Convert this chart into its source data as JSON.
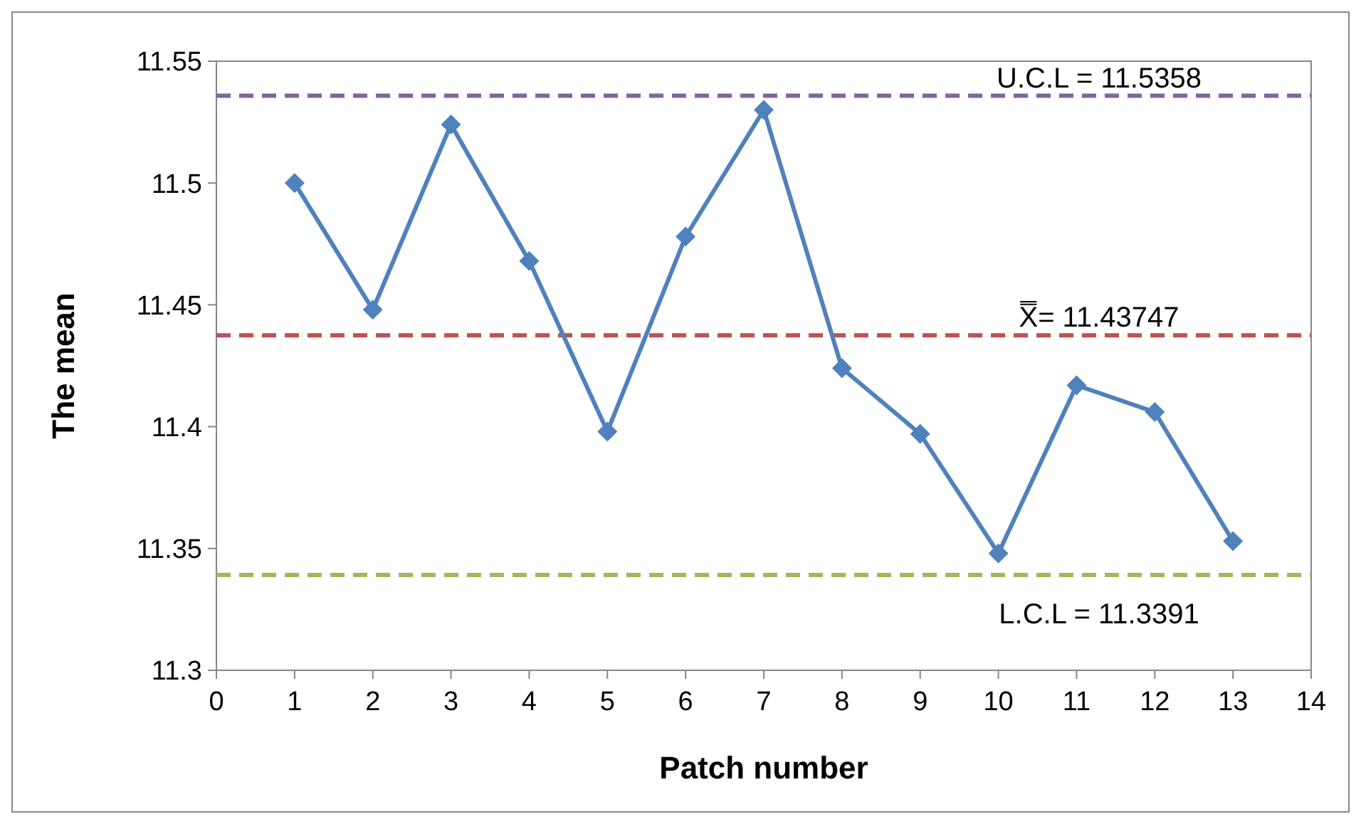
{
  "chart_data": {
    "type": "line",
    "xlabel": "Patch number",
    "ylabel": "The mean",
    "x": [
      1,
      2,
      3,
      4,
      5,
      6,
      7,
      8,
      9,
      10,
      11,
      12,
      13
    ],
    "series": [
      {
        "color": "#4f81bd",
        "values": [
          11.5,
          11.448,
          11.524,
          11.468,
          11.398,
          11.478,
          11.53,
          11.424,
          11.397,
          11.348,
          11.417,
          11.406,
          11.353
        ]
      }
    ],
    "xlim": [
      0,
      14
    ],
    "xticks": [
      0,
      1,
      2,
      3,
      4,
      5,
      6,
      7,
      8,
      9,
      10,
      11,
      12,
      13,
      14
    ],
    "ylim": [
      11.3,
      11.55
    ],
    "yticks": [
      11.3,
      11.35,
      11.4,
      11.45,
      11.5,
      11.55
    ],
    "ref_lines": [
      {
        "axis": "y",
        "value": 11.5358,
        "label": "U.C.L = 11.5358",
        "color": "#8064a2",
        "line_style": "dashed"
      },
      {
        "axis": "y",
        "value": 11.43747,
        "label": "X̿= 11.43747",
        "color": "#c0504d",
        "line_style": "dashed"
      },
      {
        "axis": "y",
        "value": 11.3391,
        "label": "L.C.L = 11.3391",
        "color": "#9bbb59",
        "line_style": "dashed"
      }
    ],
    "grid": false,
    "marker": "diamond",
    "line_style": "solid"
  }
}
